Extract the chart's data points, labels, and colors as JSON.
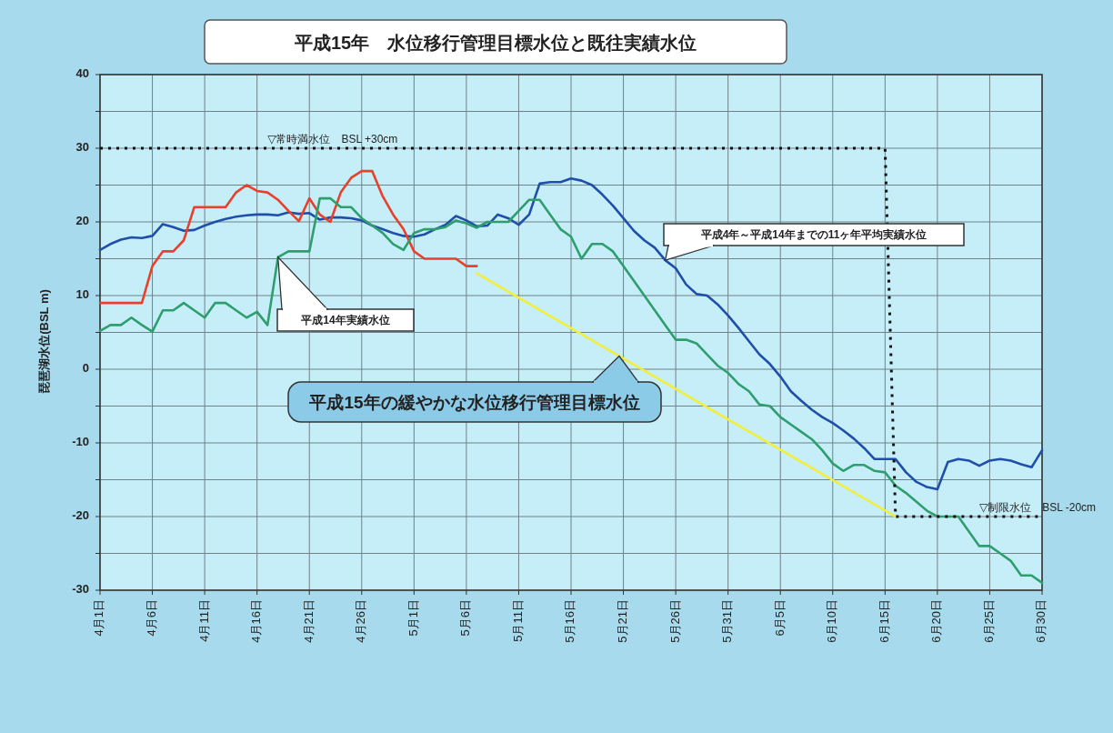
{
  "chart_data": {
    "type": "line",
    "title": "平成15年　水位移行管理目標水位と既往実績水位",
    "ylabel": "琵琶湖水位(BSL m)",
    "x": [
      "--04-01",
      "--04-02",
      "--04-03",
      "--04-04",
      "--04-05",
      "--04-06",
      "--04-07",
      "--04-08",
      "--04-09",
      "--04-10",
      "--04-11",
      "--04-12",
      "--04-13",
      "--04-14",
      "--04-15",
      "--04-16",
      "--04-17",
      "--04-18",
      "--04-19",
      "--04-20",
      "--04-21",
      "--04-22",
      "--04-23",
      "--04-24",
      "--04-25",
      "--04-26",
      "--04-27",
      "--04-28",
      "--04-29",
      "--04-30",
      "--05-01",
      "--05-02",
      "--05-03",
      "--05-04",
      "--05-05",
      "--05-06",
      "--05-07",
      "--05-08",
      "--05-09",
      "--05-10",
      "--05-11",
      "--05-12",
      "--05-13",
      "--05-14",
      "--05-15",
      "--05-16",
      "--05-17",
      "--05-18",
      "--05-19",
      "--05-20",
      "--05-21",
      "--05-22",
      "--05-23",
      "--05-24",
      "--05-25",
      "--05-26",
      "--05-27",
      "--05-28",
      "--05-29",
      "--05-30",
      "--05-31",
      "--06-01",
      "--06-02",
      "--06-03",
      "--06-04",
      "--06-05",
      "--06-06",
      "--06-07",
      "--06-08",
      "--06-09",
      "--06-10",
      "--06-11",
      "--06-12",
      "--06-13",
      "--06-14",
      "--06-15",
      "--06-16",
      "--06-17",
      "--06-18",
      "--06-19",
      "--06-20",
      "--06-21",
      "--06-22",
      "--06-23",
      "--06-24",
      "--06-25",
      "--06-26",
      "--06-27",
      "--06-28",
      "--06-29",
      "--06-30"
    ],
    "xlim": [
      "--04-01",
      "--06-30"
    ],
    "xticks": [
      {
        "value": "--04-01",
        "label": "4月1日"
      },
      {
        "value": "--04-06",
        "label": "4月6日"
      },
      {
        "value": "--04-11",
        "label": "4月11日"
      },
      {
        "value": "--04-16",
        "label": "4月16日"
      },
      {
        "value": "--04-21",
        "label": "4月21日"
      },
      {
        "value": "--04-26",
        "label": "4月26日"
      },
      {
        "value": "--05-01",
        "label": "5月1日"
      },
      {
        "value": "--05-06",
        "label": "5月6日"
      },
      {
        "value": "--05-11",
        "label": "5月11日"
      },
      {
        "value": "--05-16",
        "label": "5月16日"
      },
      {
        "value": "--05-21",
        "label": "5月21日"
      },
      {
        "value": "--05-26",
        "label": "5月26日"
      },
      {
        "value": "--05-31",
        "label": "5月31日"
      },
      {
        "value": "--06-05",
        "label": "6月5日"
      },
      {
        "value": "--06-10",
        "label": "6月10日"
      },
      {
        "value": "--06-15",
        "label": "6月15日"
      },
      {
        "value": "--06-20",
        "label": "6月20日"
      },
      {
        "value": "--06-25",
        "label": "6月25日"
      },
      {
        "value": "--06-30",
        "label": "6月30日"
      }
    ],
    "ylim": [
      -30,
      40
    ],
    "yticks": [
      40,
      {
        "value": 35,
        "label": null
      },
      30,
      {
        "value": 25,
        "label": null
      },
      20,
      {
        "value": 15,
        "label": null
      },
      10,
      {
        "value": 5,
        "label": null
      },
      0,
      {
        "value": -5,
        "label": null
      },
      -10,
      {
        "value": -15,
        "label": null
      },
      -20,
      {
        "value": -25,
        "label": null
      },
      -30
    ],
    "grid": true,
    "series": [
      {
        "name": "平成4年～平成14年までの11ヶ年平均実績水位",
        "color": "#1f4fa8",
        "values": [
          16.2,
          17,
          17.6,
          17.9,
          17.8,
          18.1,
          19.7,
          19.3,
          18.8,
          18.9,
          19.5,
          20,
          20.4,
          20.7,
          20.9,
          21,
          21,
          20.9,
          21.3,
          21.1,
          21.2,
          20.3,
          20.6,
          20.6,
          20.5,
          20.2,
          19.5,
          19,
          18.5,
          18.1,
          18,
          18.3,
          19,
          19.6,
          20.8,
          20.2,
          19.4,
          19.5,
          21,
          20.5,
          19.6,
          21,
          25.2,
          25.4,
          25.4,
          25.9,
          25.6,
          25,
          23.7,
          22.2,
          20.5,
          18.8,
          17.5,
          16.5,
          14.8,
          13.7,
          11.5,
          10.2,
          10,
          8.8,
          7.3,
          5.6,
          3.8,
          2,
          0.7,
          -1,
          -3,
          -4.3,
          -5.5,
          -6.5,
          -7.3,
          -8.3,
          -9.4,
          -10.7,
          -12.2,
          -12.2,
          -12.2,
          -14,
          -15.3,
          -16,
          -16.3,
          -12.6,
          -12.2,
          -12.4,
          -13.1,
          -12.4,
          -12.2,
          -12.4,
          -12.9,
          -13.3,
          -11
        ]
      },
      {
        "color": "#e8402a",
        "values": [
          9,
          9,
          9,
          9,
          9,
          14,
          16,
          16,
          17.5,
          22,
          22,
          22,
          22,
          24,
          25,
          24.2,
          24,
          23,
          21.5,
          20.1,
          23.2,
          21,
          20,
          24,
          26,
          26.9,
          26.9,
          23.5,
          21,
          19,
          16,
          15,
          15,
          15,
          15,
          14,
          14,
          null,
          null,
          null,
          null,
          null,
          null,
          null,
          null,
          null,
          null,
          null,
          null,
          null,
          null,
          null,
          null,
          null,
          null,
          null,
          null,
          null,
          null,
          null,
          null,
          null,
          null,
          null,
          null,
          null,
          null,
          null,
          null,
          null,
          null,
          null,
          null,
          null,
          null,
          null,
          null,
          null,
          null,
          null,
          null,
          null,
          null,
          null,
          null,
          null,
          null,
          null,
          null,
          null,
          null
        ]
      },
      {
        "name": "平成14年実績水位",
        "color": "#2e9e6e",
        "values": [
          5.2,
          6,
          6,
          7,
          6,
          5.1,
          8,
          8,
          9,
          8,
          7,
          9,
          9,
          8,
          7,
          7.8,
          6,
          15.2,
          16,
          16,
          16,
          23.2,
          23.2,
          22,
          22,
          20.5,
          19.5,
          18.5,
          17,
          16.2,
          18.5,
          19,
          19,
          19.3,
          20.2,
          19.8,
          19.2,
          20,
          20,
          20,
          21.5,
          23,
          23,
          21,
          19,
          18,
          15,
          17,
          17,
          16,
          14,
          12,
          10,
          8,
          6,
          4,
          4,
          3.5,
          2,
          0.5,
          -0.5,
          -2,
          -3,
          -4.8,
          -5,
          -6.5,
          -7.5,
          -8.5,
          -9.5,
          -11,
          -12.8,
          -13.8,
          -13,
          -13,
          -13.8,
          -14,
          -15.8,
          -16.8,
          -18,
          -19.2,
          -20,
          -20,
          -20,
          -22,
          -24,
          -24,
          -25,
          -26,
          -28,
          -28,
          -29
        ]
      },
      {
        "name": "平成15年の緩やかな水位移行管理目標水位",
        "color": "#f2ef3a",
        "x": [
          "--05-07",
          "--06-16"
        ],
        "values": [
          13,
          -20
        ]
      },
      {
        "color": "#111111",
        "line_style": "dotted",
        "x": [
          "--04-01",
          "--06-15",
          "--06-16",
          "--06-30"
        ],
        "values": [
          30,
          30,
          -20,
          -20
        ]
      }
    ],
    "annotations": [
      {
        "text": "▽常時満水位　BSL +30cm",
        "x": "--04-17",
        "y": 30
      },
      {
        "text": "▽制限水位　BSL -20cm",
        "x": "--06-24",
        "y": -20
      }
    ]
  }
}
